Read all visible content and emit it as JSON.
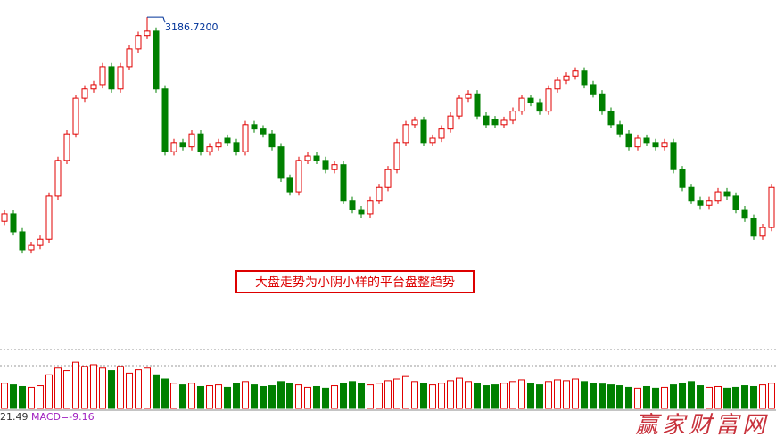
{
  "chart_data": {
    "type": "candlestick",
    "up_color": "#e00000",
    "down_color": "#008000",
    "annotation": {
      "index": 16,
      "label": "3186.7200"
    },
    "note": "大盘走势为小阴小样的平台盘整趋势",
    "indicator_value": "21.49",
    "macd_label": "MACD=-9.16",
    "watermark": "赢家财富网",
    "ylim": [
      2780,
      3200
    ],
    "volume_ylim": [
      0,
      70
    ],
    "open": [
      2855,
      2867,
      2838,
      2809,
      2816,
      2826,
      2896,
      2954,
      2997,
      3055,
      3070,
      3077,
      3106,
      3070,
      3106,
      3135,
      3157,
      3164,
      3070,
      2968,
      2983,
      2976,
      2997,
      2968,
      2976,
      2990,
      2983,
      2968,
      3012,
      3005,
      2997,
      2976,
      2925,
      2903,
      2954,
      2961,
      2954,
      2939,
      2947,
      2889,
      2874,
      2867,
      2889,
      2910,
      2939,
      2983,
      3012,
      3019,
      2983,
      2990,
      3005,
      3026,
      3055,
      3062,
      3026,
      3020,
      3012,
      3019,
      3034,
      3055,
      3048,
      3034,
      3070,
      3084,
      3091,
      3099,
      3077,
      3062,
      3034,
      3012,
      2997,
      2976,
      2990,
      2983,
      2976,
      2983,
      2939,
      2910,
      2889,
      2881,
      2889,
      2903,
      2896,
      2874,
      2860,
      2831,
      2845
    ],
    "high": [
      2873,
      2873,
      2844,
      2822,
      2832,
      2902,
      2960,
      3003,
      3061,
      3076,
      3083,
      3112,
      3112,
      3112,
      3141,
      3163,
      3186.72,
      3170,
      3076,
      2989,
      2989,
      3003,
      3003,
      2982,
      2989,
      2996,
      2989,
      3018,
      3018,
      3011,
      3003,
      2982,
      2931,
      2960,
      2967,
      2967,
      2960,
      2953,
      2953,
      2895,
      2880,
      2895,
      2916,
      2945,
      2989,
      3018,
      3025,
      3025,
      2996,
      3011,
      3032,
      3061,
      3068,
      3068,
      3032,
      3026,
      3025,
      3040,
      3061,
      3061,
      3054,
      3076,
      3090,
      3097,
      3105,
      3105,
      3083,
      3068,
      3040,
      3018,
      3003,
      2996,
      2996,
      2989,
      2989,
      2989,
      2945,
      2916,
      2895,
      2895,
      2909,
      2909,
      2902,
      2880,
      2866,
      2851,
      2916
    ],
    "low": [
      2849,
      2832,
      2803,
      2803,
      2810,
      2820,
      2890,
      2948,
      2991,
      3049,
      3064,
      3071,
      3064,
      3064,
      3100,
      3129,
      3151,
      3064,
      2962,
      2962,
      2970,
      2970,
      2962,
      2962,
      2970,
      2977,
      2962,
      2962,
      2999,
      2991,
      2970,
      2919,
      2897,
      2897,
      2948,
      2948,
      2933,
      2933,
      2883,
      2868,
      2861,
      2861,
      2883,
      2904,
      2933,
      2977,
      3006,
      2977,
      2977,
      2984,
      2999,
      3020,
      3049,
      3020,
      3006,
      3006,
      3006,
      3013,
      3028,
      3042,
      3028,
      3028,
      3064,
      3078,
      3085,
      3071,
      3056,
      3028,
      3006,
      2991,
      2970,
      2970,
      2977,
      2970,
      2970,
      2933,
      2904,
      2883,
      2875,
      2875,
      2883,
      2890,
      2868,
      2854,
      2825,
      2825,
      2839
    ],
    "close": [
      2867,
      2838,
      2809,
      2816,
      2826,
      2896,
      2954,
      2997,
      3055,
      3070,
      3077,
      3106,
      3070,
      3106,
      3135,
      3157,
      3164,
      3070,
      2968,
      2983,
      2976,
      2997,
      2968,
      2976,
      2983,
      2983,
      2968,
      3012,
      3005,
      2997,
      2976,
      2925,
      2903,
      2954,
      2961,
      2954,
      2939,
      2947,
      2889,
      2874,
      2867,
      2889,
      2910,
      2939,
      2983,
      3012,
      3019,
      2983,
      2990,
      3005,
      3026,
      3055,
      3062,
      3026,
      3012,
      3012,
      3019,
      3034,
      3055,
      3048,
      3034,
      3070,
      3084,
      3091,
      3099,
      3077,
      3062,
      3034,
      3012,
      2997,
      2976,
      2990,
      2983,
      2976,
      2983,
      2939,
      2910,
      2889,
      2881,
      2889,
      2903,
      2896,
      2874,
      2860,
      2831,
      2845,
      2910
    ],
    "volume": [
      30,
      28,
      26,
      25,
      27,
      40,
      48,
      45,
      55,
      50,
      52,
      48,
      45,
      50,
      42,
      46,
      48,
      40,
      35,
      30,
      28,
      30,
      26,
      27,
      28,
      25,
      30,
      32,
      28,
      26,
      27,
      32,
      30,
      28,
      25,
      26,
      24,
      27,
      30,
      32,
      30,
      28,
      30,
      33,
      35,
      38,
      32,
      30,
      28,
      30,
      33,
      36,
      32,
      30,
      27,
      28,
      30,
      32,
      34,
      30,
      28,
      32,
      34,
      33,
      35,
      32,
      30,
      29,
      28,
      27,
      25,
      24,
      26,
      24,
      25,
      28,
      30,
      32,
      27,
      25,
      26,
      24,
      25,
      27,
      26,
      28,
      30
    ]
  }
}
